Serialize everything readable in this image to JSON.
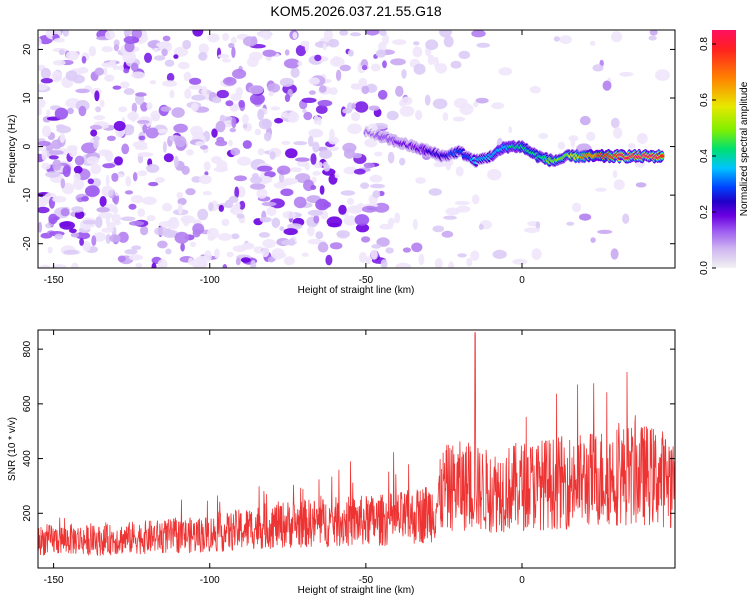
{
  "chart_data": [
    {
      "type": "heatmap",
      "title": "KOM5.2026.037.21.55.G18",
      "xlabel": "Height of straight line (km)",
      "ylabel": "Frequency (Hz)",
      "xlim": [
        -155,
        49
      ],
      "ylim": [
        -25,
        24
      ],
      "x_ticks": [
        -150,
        -100,
        -50,
        0
      ],
      "y_ticks": [
        -20,
        -10,
        0,
        10,
        20
      ],
      "colorbar": {
        "label": "Normalized spectral amplitude",
        "range": [
          0.0,
          0.85
        ],
        "ticks": [
          0.0,
          0.2,
          0.4,
          0.6,
          0.8
        ],
        "colormap": [
          "#f2f2f2",
          "#cfb6f0",
          "#9a55f0",
          "#6a00e0",
          "#2000c8",
          "#0044ff",
          "#00c4ff",
          "#00e070",
          "#80ef00",
          "#e8e800",
          "#ff8000",
          "#ff2020",
          "#ff1060"
        ]
      },
      "ridge": {
        "description_points_x": [
          -50,
          -45,
          -40,
          -35,
          -30,
          -25,
          -20,
          -15,
          -10,
          -5,
          0,
          5,
          10,
          15,
          20,
          25,
          30,
          35,
          40,
          45
        ],
        "description_points_y": [
          3,
          2,
          1,
          0,
          -1,
          -2,
          -1,
          -3,
          -2,
          0,
          0,
          -2,
          -3,
          -2,
          -2,
          -2,
          -2,
          -2,
          -2,
          -2
        ],
        "peak_amplitude": [
          0.12,
          0.15,
          0.18,
          0.2,
          0.25,
          0.3,
          0.36,
          0.4,
          0.42,
          0.45,
          0.5,
          0.5,
          0.55,
          0.6,
          0.7,
          0.75,
          0.8,
          0.85,
          0.85,
          0.8
        ]
      }
    },
    {
      "type": "line",
      "xlabel": "Height of straight line (km)",
      "ylabel": "SNR (10 * v/v)",
      "xlim": [
        -155,
        49
      ],
      "ylim": [
        0,
        870
      ],
      "x_ticks": [
        -150,
        -100,
        -50,
        0
      ],
      "y_ticks": [
        200,
        400,
        600,
        800
      ],
      "series": [
        {
          "name": "SNR",
          "color": "#ee3333",
          "x": [
            -155,
            -145,
            -135,
            -125,
            -115,
            -105,
            -95,
            -85,
            -75,
            -65,
            -55,
            -45,
            -35,
            -28,
            -25,
            -20,
            -15,
            -10,
            -5,
            0,
            10,
            20,
            30,
            40,
            49
          ],
          "values": [
            100,
            105,
            100,
            110,
            115,
            120,
            130,
            150,
            160,
            165,
            170,
            175,
            185,
            210,
            290,
            300,
            290,
            280,
            290,
            300,
            310,
            320,
            340,
            340,
            320
          ],
          "spike": {
            "x": -15,
            "y": 860
          }
        }
      ]
    }
  ]
}
